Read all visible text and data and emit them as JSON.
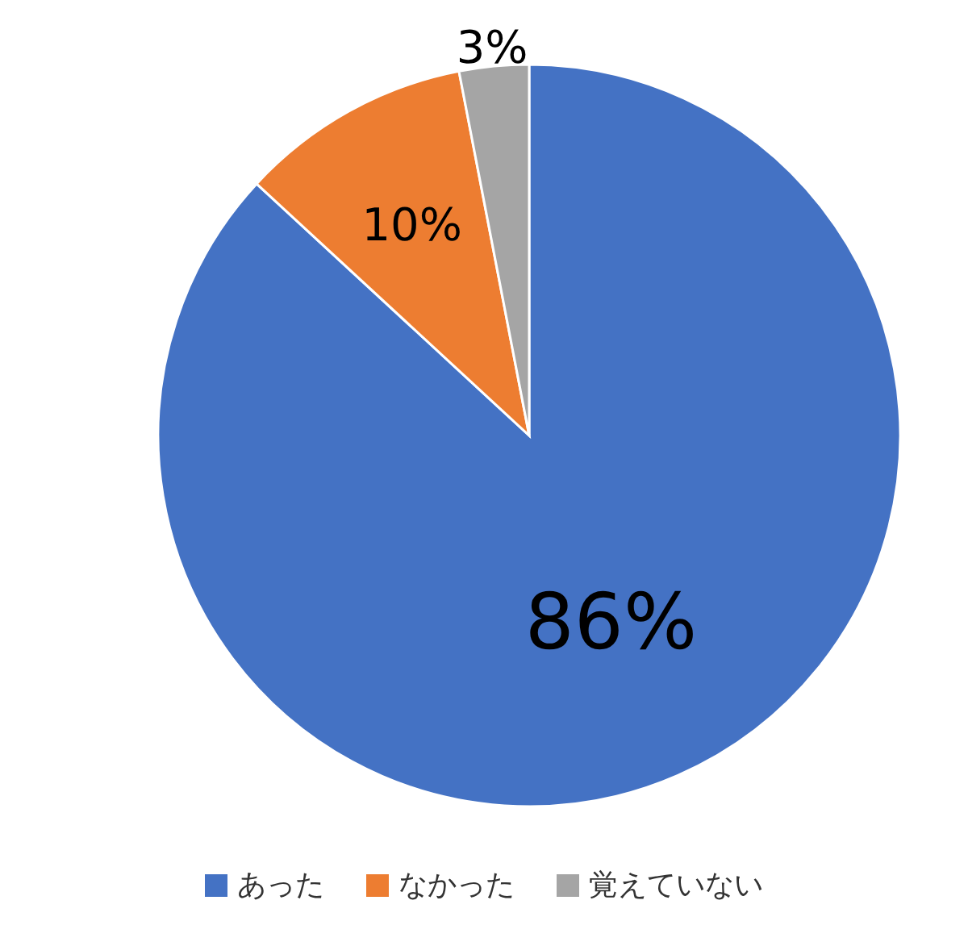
{
  "chart_data": {
    "type": "pie",
    "categories": [
      "あった",
      "なかった",
      "覚えていない"
    ],
    "values": [
      86,
      10,
      3
    ],
    "colors": [
      "#4472c4",
      "#ed7d31",
      "#a5a5a5"
    ],
    "value_labels": [
      "86%",
      "10%",
      "3%"
    ],
    "legend": "bottom"
  }
}
